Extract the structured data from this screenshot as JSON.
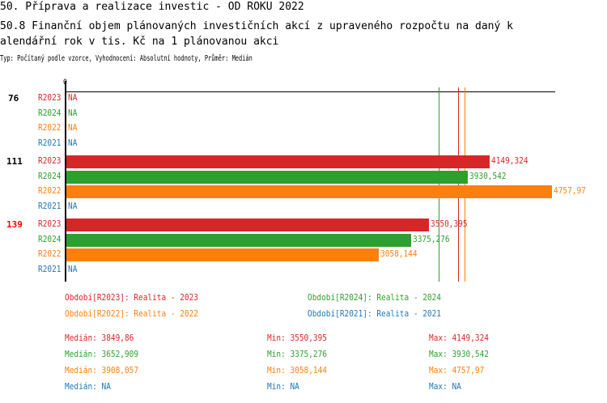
{
  "title": "50. Příprava a realizace investic - OD ROKU 2022",
  "subtitle_lines": [
    "50.8 Finanční objem plánovaných investičních akcí z upraveného rozpočtu na daný k",
    "alendářní rok v tis. Kč na 1 plánovanou akci"
  ],
  "info": "Typ: Počítaný podle vzorce, Vyhodnocení: Absolutní hodnoty, Průměr: Medián",
  "chart_data": {
    "type": "bar",
    "orientation": "horizontal",
    "axis_zero_label": "0",
    "xlim": [
      0,
      4757.97
    ],
    "colors": {
      "R2023": "#d62728",
      "R2024": "#2ca02c",
      "R2022": "#ff7f0e",
      "R2021": "#1f77b4"
    },
    "groups": [
      {
        "label": "76",
        "label_color": "#000000",
        "rows": [
          {
            "series": "R2023",
            "value": null,
            "text": "NA"
          },
          {
            "series": "R2024",
            "value": null,
            "text": "NA"
          },
          {
            "series": "R2022",
            "value": null,
            "text": "NA"
          },
          {
            "series": "R2021",
            "value": null,
            "text": "NA"
          }
        ]
      },
      {
        "label": "111",
        "label_color": "#000000",
        "rows": [
          {
            "series": "R2023",
            "value": 4149.324,
            "text": "4149,324"
          },
          {
            "series": "R2024",
            "value": 3930.542,
            "text": "3930,542"
          },
          {
            "series": "R2022",
            "value": 4757.97,
            "text": "4757,97"
          },
          {
            "series": "R2021",
            "value": null,
            "text": "NA"
          }
        ]
      },
      {
        "label": "139",
        "label_color": "#ff0000",
        "rows": [
          {
            "series": "R2023",
            "value": 3550.395,
            "text": "3550,395"
          },
          {
            "series": "R2024",
            "value": 3375.276,
            "text": "3375,276"
          },
          {
            "series": "R2022",
            "value": 3058.144,
            "text": "3058,144"
          },
          {
            "series": "R2021",
            "value": null,
            "text": "NA"
          }
        ]
      }
    ],
    "median_lines": [
      {
        "series": "R2024",
        "value": 3652.909
      },
      {
        "series": "R2023",
        "value": 3849.86
      },
      {
        "series": "R2022",
        "value": 3908.057
      }
    ],
    "legend": [
      {
        "series": "R2023",
        "text": "Období[R2023]: Realita - 2023"
      },
      {
        "series": "R2024",
        "text": "Období[R2024]: Realita - 2024"
      },
      {
        "series": "R2022",
        "text": "Období[R2022]: Realita - 2022"
      },
      {
        "series": "R2021",
        "text": "Období[R2021]: Realita - 2021"
      }
    ],
    "stats": [
      {
        "series": "R2023",
        "median": "Medián: 3849,86",
        "min": "Min: 3550,395",
        "max": "Max: 4149,324"
      },
      {
        "series": "R2024",
        "median": "Medián: 3652,909",
        "min": "Min: 3375,276",
        "max": "Max: 3930,542"
      },
      {
        "series": "R2022",
        "median": "Medián: 3908,057",
        "min": "Min: 3058,144",
        "max": "Max: 4757,97"
      },
      {
        "series": "R2021",
        "median": "Medián: NA",
        "min": "Min: NA",
        "max": "Max: NA"
      }
    ]
  }
}
